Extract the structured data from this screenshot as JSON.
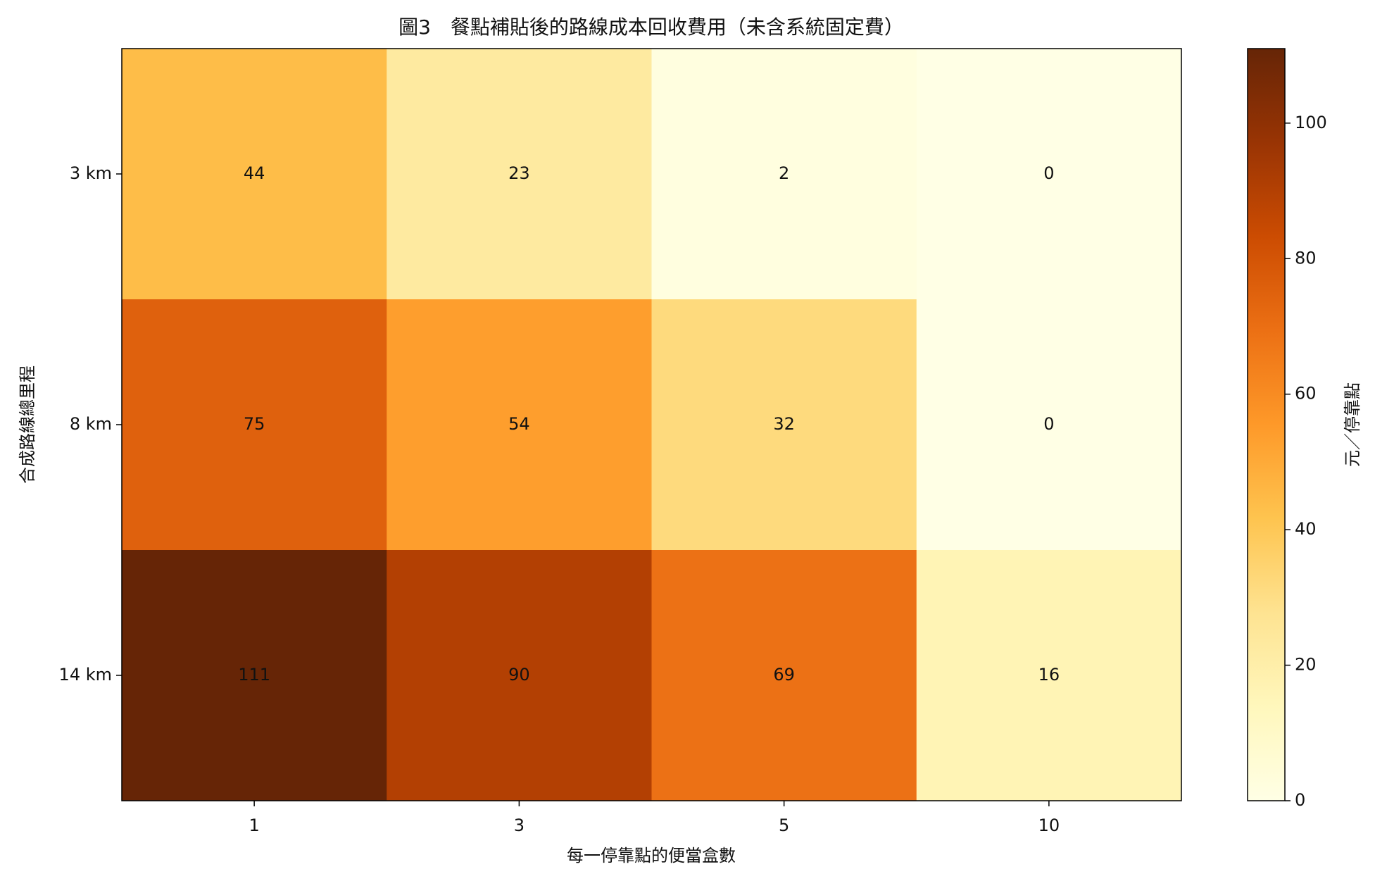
{
  "chart_data": {
    "type": "heatmap",
    "title": "圖3　餐點補貼後的路線成本回收費用（未含系統固定費）",
    "xlabel": "每一停靠點的便當盒數",
    "ylabel": "合成路線總里程",
    "x_categories": [
      "1",
      "3",
      "5",
      "10"
    ],
    "y_categories": [
      "3 km",
      "8 km",
      "14 km"
    ],
    "values": [
      [
        44,
        23,
        2,
        0
      ],
      [
        75,
        54,
        32,
        0
      ],
      [
        111,
        90,
        69,
        16
      ]
    ],
    "cmap": "YlOrBr",
    "clim": [
      0,
      111
    ],
    "colorbar_label": "元／停靠點",
    "colorbar_ticks": [
      0,
      20,
      40,
      60,
      80,
      100
    ]
  }
}
